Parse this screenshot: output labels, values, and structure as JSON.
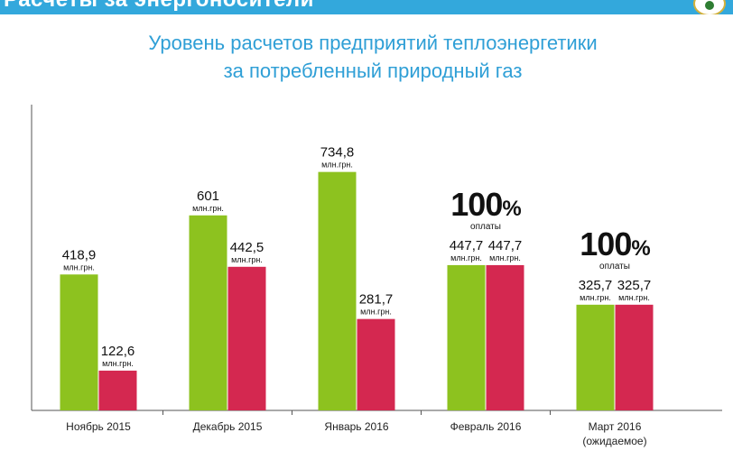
{
  "header": {
    "banner_text": "Расчеты за энергоносители"
  },
  "chart_data": {
    "type": "bar",
    "title_line1": "Уровень расчетов предприятий теплоэнергетики",
    "title_line2": "за потребленный природный газ",
    "unit": "млн.грн.",
    "categories": [
      "Ноябрь 2015",
      "Декабрь 2015",
      "Январь 2016",
      "Февраль 2016",
      "Март 2016"
    ],
    "category_notes": [
      "",
      "",
      "",
      "",
      "(ожидаемое)"
    ],
    "value_labels": [
      [
        "418,9",
        "122,6"
      ],
      [
        "601",
        "442,5"
      ],
      [
        "734,8",
        "281,7"
      ],
      [
        "447,7",
        "447,7"
      ],
      [
        "325,7",
        "325,7"
      ]
    ],
    "series": [
      {
        "color": "#8dc21f",
        "values": [
          418.9,
          601,
          734.8,
          447.7,
          325.7
        ]
      },
      {
        "color": "#d42850",
        "values": [
          122.6,
          442.5,
          281.7,
          447.7,
          325.7
        ]
      }
    ],
    "ylim": [
      0,
      920
    ],
    "annotations": [
      {
        "category_index": 3,
        "big": "100",
        "sign": "%",
        "small": "оплаты"
      },
      {
        "category_index": 4,
        "big": "100",
        "sign": "%",
        "small": "оплаты"
      }
    ],
    "axis_color": "#555555"
  }
}
